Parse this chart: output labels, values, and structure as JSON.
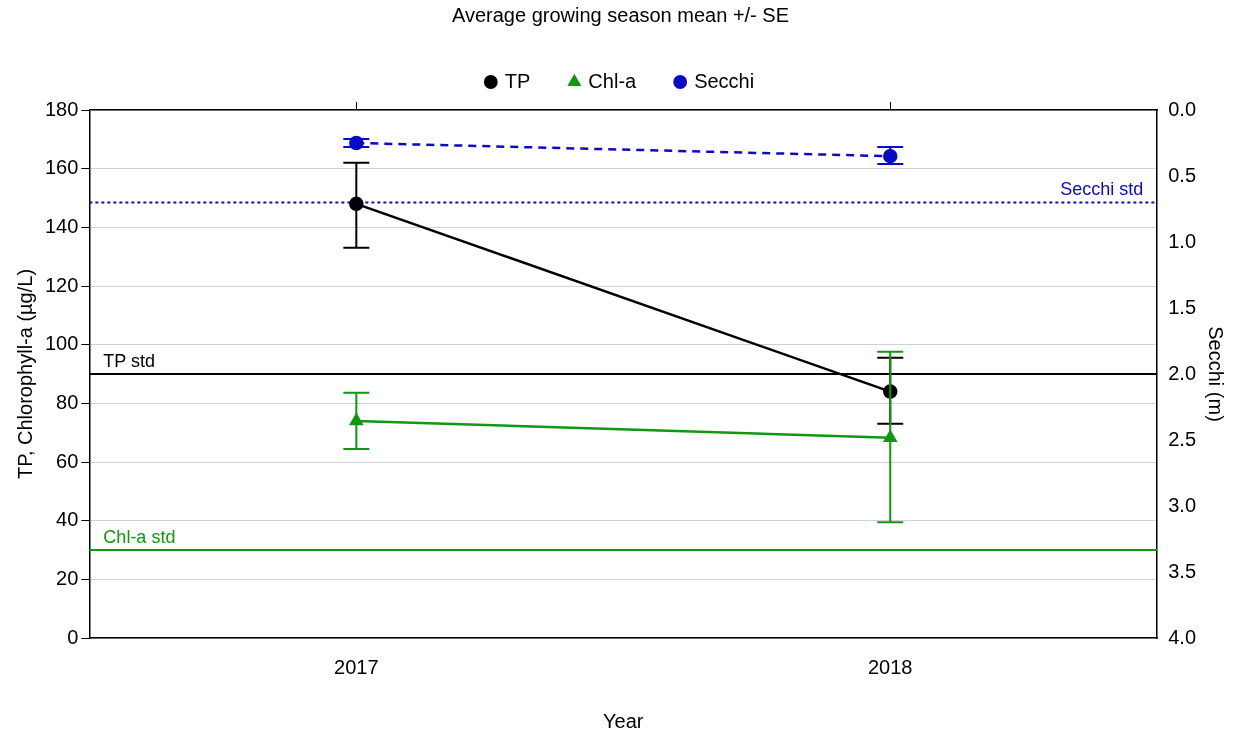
{
  "chart_data": {
    "type": "line",
    "legend_title": "Average growing season mean +/- SE",
    "xlabel": "Year",
    "ylabel": "TP, Chlorophyll-a (µg/L)",
    "y2label": "Secchi (m)",
    "categories": [
      "2017",
      "2018"
    ],
    "series": [
      {
        "name": "TP",
        "color": "#000000",
        "marker": "circle",
        "line_style": "solid",
        "values": [
          148,
          84
        ],
        "errors": [
          [
            133,
            162
          ],
          [
            73,
            95.5
          ]
        ]
      },
      {
        "name": "Chl-a",
        "color": "#109810",
        "marker": "triangle",
        "line_style": "solid",
        "values": [
          74,
          68.3
        ],
        "errors": [
          [
            64.4,
            83.6
          ],
          [
            39.5,
            97.6
          ]
        ]
      },
      {
        "name": "Secchi",
        "color": "#0a0ac8",
        "marker": "circle",
        "line_style": "dashed",
        "axis": "y2",
        "values": [
          0.25,
          0.35
        ],
        "errors": [
          [
            0.22,
            0.28
          ],
          [
            0.28,
            0.41
          ]
        ]
      }
    ],
    "ylim": [
      0,
      180
    ],
    "yticks": [
      0,
      20,
      40,
      60,
      80,
      100,
      120,
      140,
      160,
      180
    ],
    "y2lim": [
      4.0,
      0.0
    ],
    "y2ticks": [
      {
        "value": 0,
        "label": "0.0"
      },
      {
        "value": 0.5,
        "label": "0.5"
      },
      {
        "value": 1,
        "label": "1.0"
      },
      {
        "value": 1.5,
        "label": "1.5"
      },
      {
        "value": 2,
        "label": "2.0"
      },
      {
        "value": 2.5,
        "label": "2.5"
      },
      {
        "value": 3,
        "label": "3.0"
      },
      {
        "value": 3.5,
        "label": "3.5"
      },
      {
        "value": 4,
        "label": "4.0"
      }
    ],
    "ref_lines": [
      {
        "axis": "y",
        "value": 90,
        "label": "TP std",
        "color": "#000000",
        "line_style": "solid"
      },
      {
        "axis": "y",
        "value": 30,
        "label": "Chl-a std",
        "color": "#109810",
        "line_style": "solid"
      },
      {
        "axis": "y2",
        "value": 0.7,
        "label": "Secchi std",
        "color": "#0a0ac8",
        "line_style": "dotted"
      }
    ],
    "grid": "y",
    "legend": "top"
  }
}
